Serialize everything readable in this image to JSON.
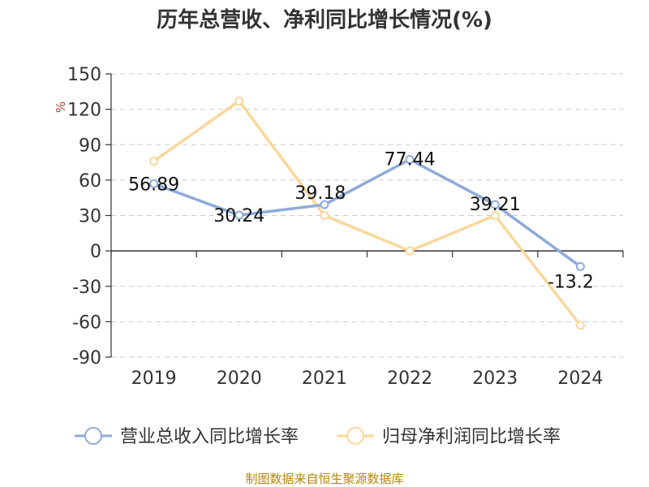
{
  "chart_data": {
    "type": "line",
    "title": "历年总营收、净利同比增长情况(%)",
    "unit_label": "%",
    "categories": [
      "2019",
      "2020",
      "2021",
      "2022",
      "2023",
      "2024"
    ],
    "ylim": [
      -90,
      150
    ],
    "yticks": [
      150,
      120,
      90,
      60,
      30,
      0,
      -30,
      -60,
      -90
    ],
    "grid": true,
    "legend_position": "bottom",
    "series": [
      {
        "name": "营业总收入同比增长率",
        "color": "#8eaadb",
        "values": [
          56.89,
          30.24,
          39.18,
          77.44,
          39.21,
          -13.2
        ],
        "labels": [
          "56.89",
          "30.24",
          "39.18",
          "77.44",
          "39.21",
          "-13.2"
        ]
      },
      {
        "name": "归母净利润同比增长率",
        "color": "#fbd79b",
        "values": [
          76,
          127,
          30,
          0,
          30,
          -63
        ]
      }
    ]
  },
  "source": "制图数据来自恒生聚源数据库"
}
